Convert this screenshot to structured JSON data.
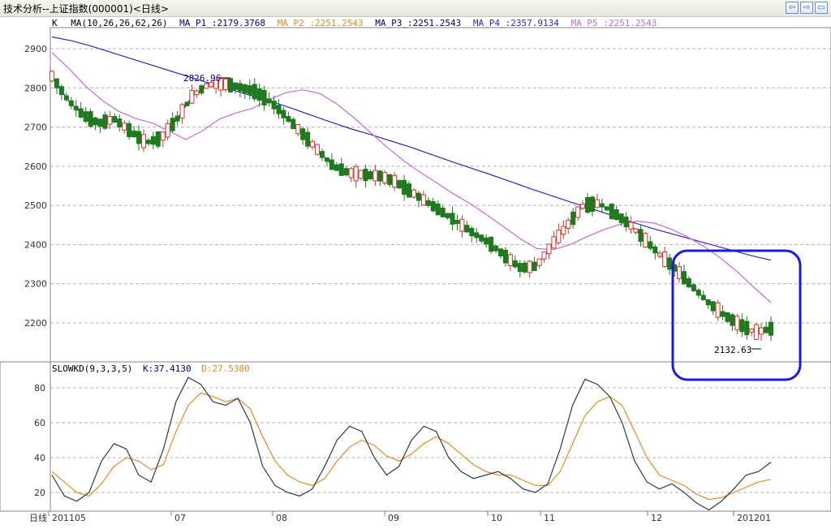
{
  "window": {
    "title": "技术分析--上证指数(000001)<日线>",
    "buttons": [
      "⇦",
      "⇨",
      "▭"
    ]
  },
  "colors": {
    "up": "#d4342b",
    "down": "#1f7a1f",
    "ma1": "#2a2a2a",
    "ma2": "#e08a1e",
    "ma3": "#000080",
    "ma4": "#2828d0",
    "ma5": "#c86ad2",
    "k": "#2b3a4a",
    "d": "#e88a1a",
    "highlight": "#1a1ae6"
  },
  "price_panel": {
    "label": "K",
    "legend": [
      {
        "text": "MA(10,26,26,62,26)",
        "color": "#000000"
      },
      {
        "text": "MA_P1_:2179.3768",
        "color": "#000080"
      },
      {
        "text": "MA_P2_:2251.2543",
        "color": "#e08a1e"
      },
      {
        "text": "MA_P3_:2251.2543",
        "color": "#000080"
      },
      {
        "text": "MA_P4_:2357.9134",
        "color": "#2828d0"
      },
      {
        "text": "MA_P5_:2251.2543",
        "color": "#c86ad2"
      }
    ],
    "high_label": "2826.96",
    "low_label": "2132.63"
  },
  "kd_panel": {
    "legend": [
      {
        "text": "SLOWKD(9,3,3,5)",
        "color": "#000000"
      },
      {
        "text": "K:37.4130",
        "color": "#000080"
      },
      {
        "text": "D:27.5380",
        "color": "#e08a1e"
      }
    ]
  },
  "bottom_label": "日线",
  "chart_data": [
    {
      "type": "candlestick",
      "title": "上证指数(000001)",
      "ylim": [
        2100,
        2950
      ],
      "yticks": [
        2200,
        2300,
        2400,
        2500,
        2600,
        2700,
        2800,
        2900
      ],
      "x_tick_labels": [
        "201105",
        "07",
        "08",
        "09",
        "10",
        "11",
        "12",
        "201201"
      ],
      "grid": true,
      "annotations": [
        {
          "text": "2826.96",
          "value": 2826.96
        },
        {
          "text": "2132.63",
          "value": 2132.63
        }
      ],
      "ma_series": [
        {
          "name": "MA_P1_",
          "last": 2179.3768
        },
        {
          "name": "MA_P2_",
          "last": 2251.2543
        },
        {
          "name": "MA_P3_",
          "last": 2251.2543
        },
        {
          "name": "MA_P4_",
          "last": 2357.9134
        },
        {
          "name": "MA_P5_",
          "last": 2251.2543
        }
      ],
      "ma_long": [
        2930,
        2920,
        2906,
        2890,
        2874,
        2858,
        2842,
        2826,
        2810,
        2795,
        2780,
        2765,
        2748,
        2730,
        2712,
        2695,
        2680,
        2664,
        2648,
        2630,
        2612,
        2595,
        2578,
        2560,
        2542,
        2525,
        2508,
        2492,
        2475,
        2458,
        2442,
        2428,
        2414,
        2400,
        2386,
        2372,
        2360
      ],
      "ma_mid": [
        2890,
        2850,
        2805,
        2768,
        2740,
        2722,
        2710,
        2690,
        2668,
        2690,
        2720,
        2736,
        2748,
        2770,
        2788,
        2795,
        2786,
        2760,
        2726,
        2688,
        2650,
        2615,
        2585,
        2558,
        2530,
        2505,
        2476,
        2446,
        2415,
        2390,
        2387,
        2400,
        2420,
        2438,
        2452,
        2460,
        2455,
        2440,
        2420,
        2395,
        2365,
        2330,
        2290,
        2252
      ],
      "ma_short": [
        2830,
        2770,
        2730,
        2710,
        2720,
        2690,
        2660,
        2672,
        2720,
        2780,
        2808,
        2810,
        2802,
        2790,
        2764,
        2726,
        2684,
        2642,
        2600,
        2583,
        2578,
        2575,
        2560,
        2534,
        2508,
        2482,
        2456,
        2428,
        2404,
        2370,
        2340,
        2345,
        2400,
        2450,
        2500,
        2505,
        2480,
        2450,
        2410,
        2370,
        2334,
        2292,
        2252,
        2220,
        2196,
        2176,
        2185
      ]
    },
    {
      "type": "line",
      "title": "SLOWKD(9,3,3,5)",
      "ylim": [
        0,
        100
      ],
      "yticks": [
        20,
        40,
        60,
        80
      ],
      "series": [
        {
          "name": "K",
          "last": 37.413,
          "values": [
            30,
            18,
            15,
            20,
            38,
            48,
            45,
            30,
            26,
            45,
            72,
            86,
            82,
            72,
            70,
            74,
            60,
            35,
            24,
            20,
            18,
            22,
            35,
            50,
            58,
            55,
            40,
            30,
            35,
            50,
            58,
            55,
            40,
            32,
            28,
            30,
            32,
            28,
            22,
            20,
            25,
            45,
            70,
            85,
            82,
            75,
            60,
            38,
            26,
            22,
            25,
            20,
            14,
            10,
            15,
            22,
            30,
            32,
            37.41
          ]
        },
        {
          "name": "D",
          "last": 27.538,
          "values": [
            32,
            26,
            20,
            18,
            25,
            35,
            40,
            38,
            33,
            36,
            55,
            70,
            77,
            75,
            72,
            74,
            68,
            52,
            38,
            30,
            26,
            24,
            28,
            38,
            46,
            50,
            47,
            41,
            38,
            42,
            48,
            52,
            48,
            42,
            36,
            32,
            30,
            30,
            27,
            24,
            24,
            32,
            48,
            64,
            72,
            75,
            70,
            55,
            40,
            30,
            27,
            24,
            19,
            16,
            17,
            20,
            23,
            26,
            27.54
          ]
        }
      ]
    }
  ]
}
